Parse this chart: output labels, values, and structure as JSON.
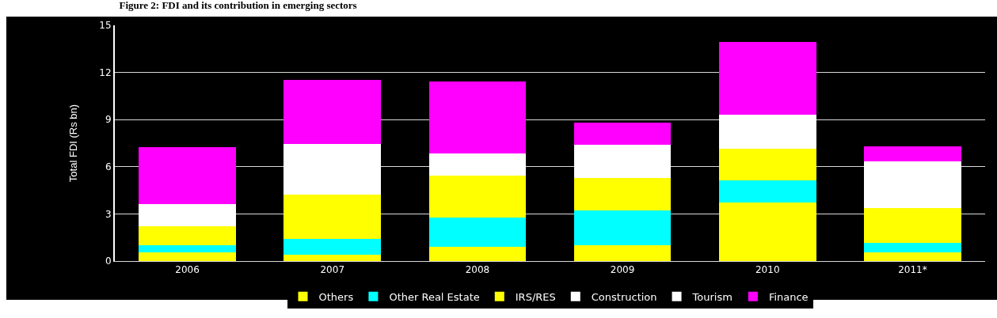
{
  "chart_data": {
    "type": "bar",
    "title": "Figure 2: FDI and its contribution in emerging sectors",
    "ylabel": "Total FDI (Rs bn)",
    "categories": [
      "2006",
      "2007",
      "2008",
      "2009",
      "2010",
      "2011*"
    ],
    "stacked": true,
    "series": [
      {
        "name": "Others",
        "color": "#ffff00",
        "values": [
          0.54,
          0.41,
          0.92,
          1.03,
          3.72,
          0.56
        ]
      },
      {
        "name": "Other Real Estate",
        "color": "#00ffff",
        "values": [
          0.47,
          1.01,
          1.85,
          2.2,
          1.4,
          0.62
        ]
      },
      {
        "name": "IRS/RES",
        "color": "#ffff00",
        "values": [
          1.21,
          2.8,
          2.67,
          2.08,
          2.04,
          2.2
        ]
      },
      {
        "name": "Construction",
        "color": "#ffffff",
        "values": [
          1.41,
          3.24,
          1.42,
          2.09,
          2.13,
          2.94
        ]
      },
      {
        "name": "Tourism",
        "color": "#ffffff",
        "values": [
          null,
          null,
          null,
          null,
          null,
          null
        ]
      },
      {
        "name": "Finance",
        "color": "#ff00ff",
        "values": [
          3.62,
          4.05,
          4.58,
          1.39,
          4.65,
          0.99
        ]
      }
    ],
    "ylim": [
      0,
      15
    ],
    "yticks": [
      0,
      3,
      6,
      9,
      12,
      15
    ],
    "grid": "y",
    "legend": "bottom"
  }
}
